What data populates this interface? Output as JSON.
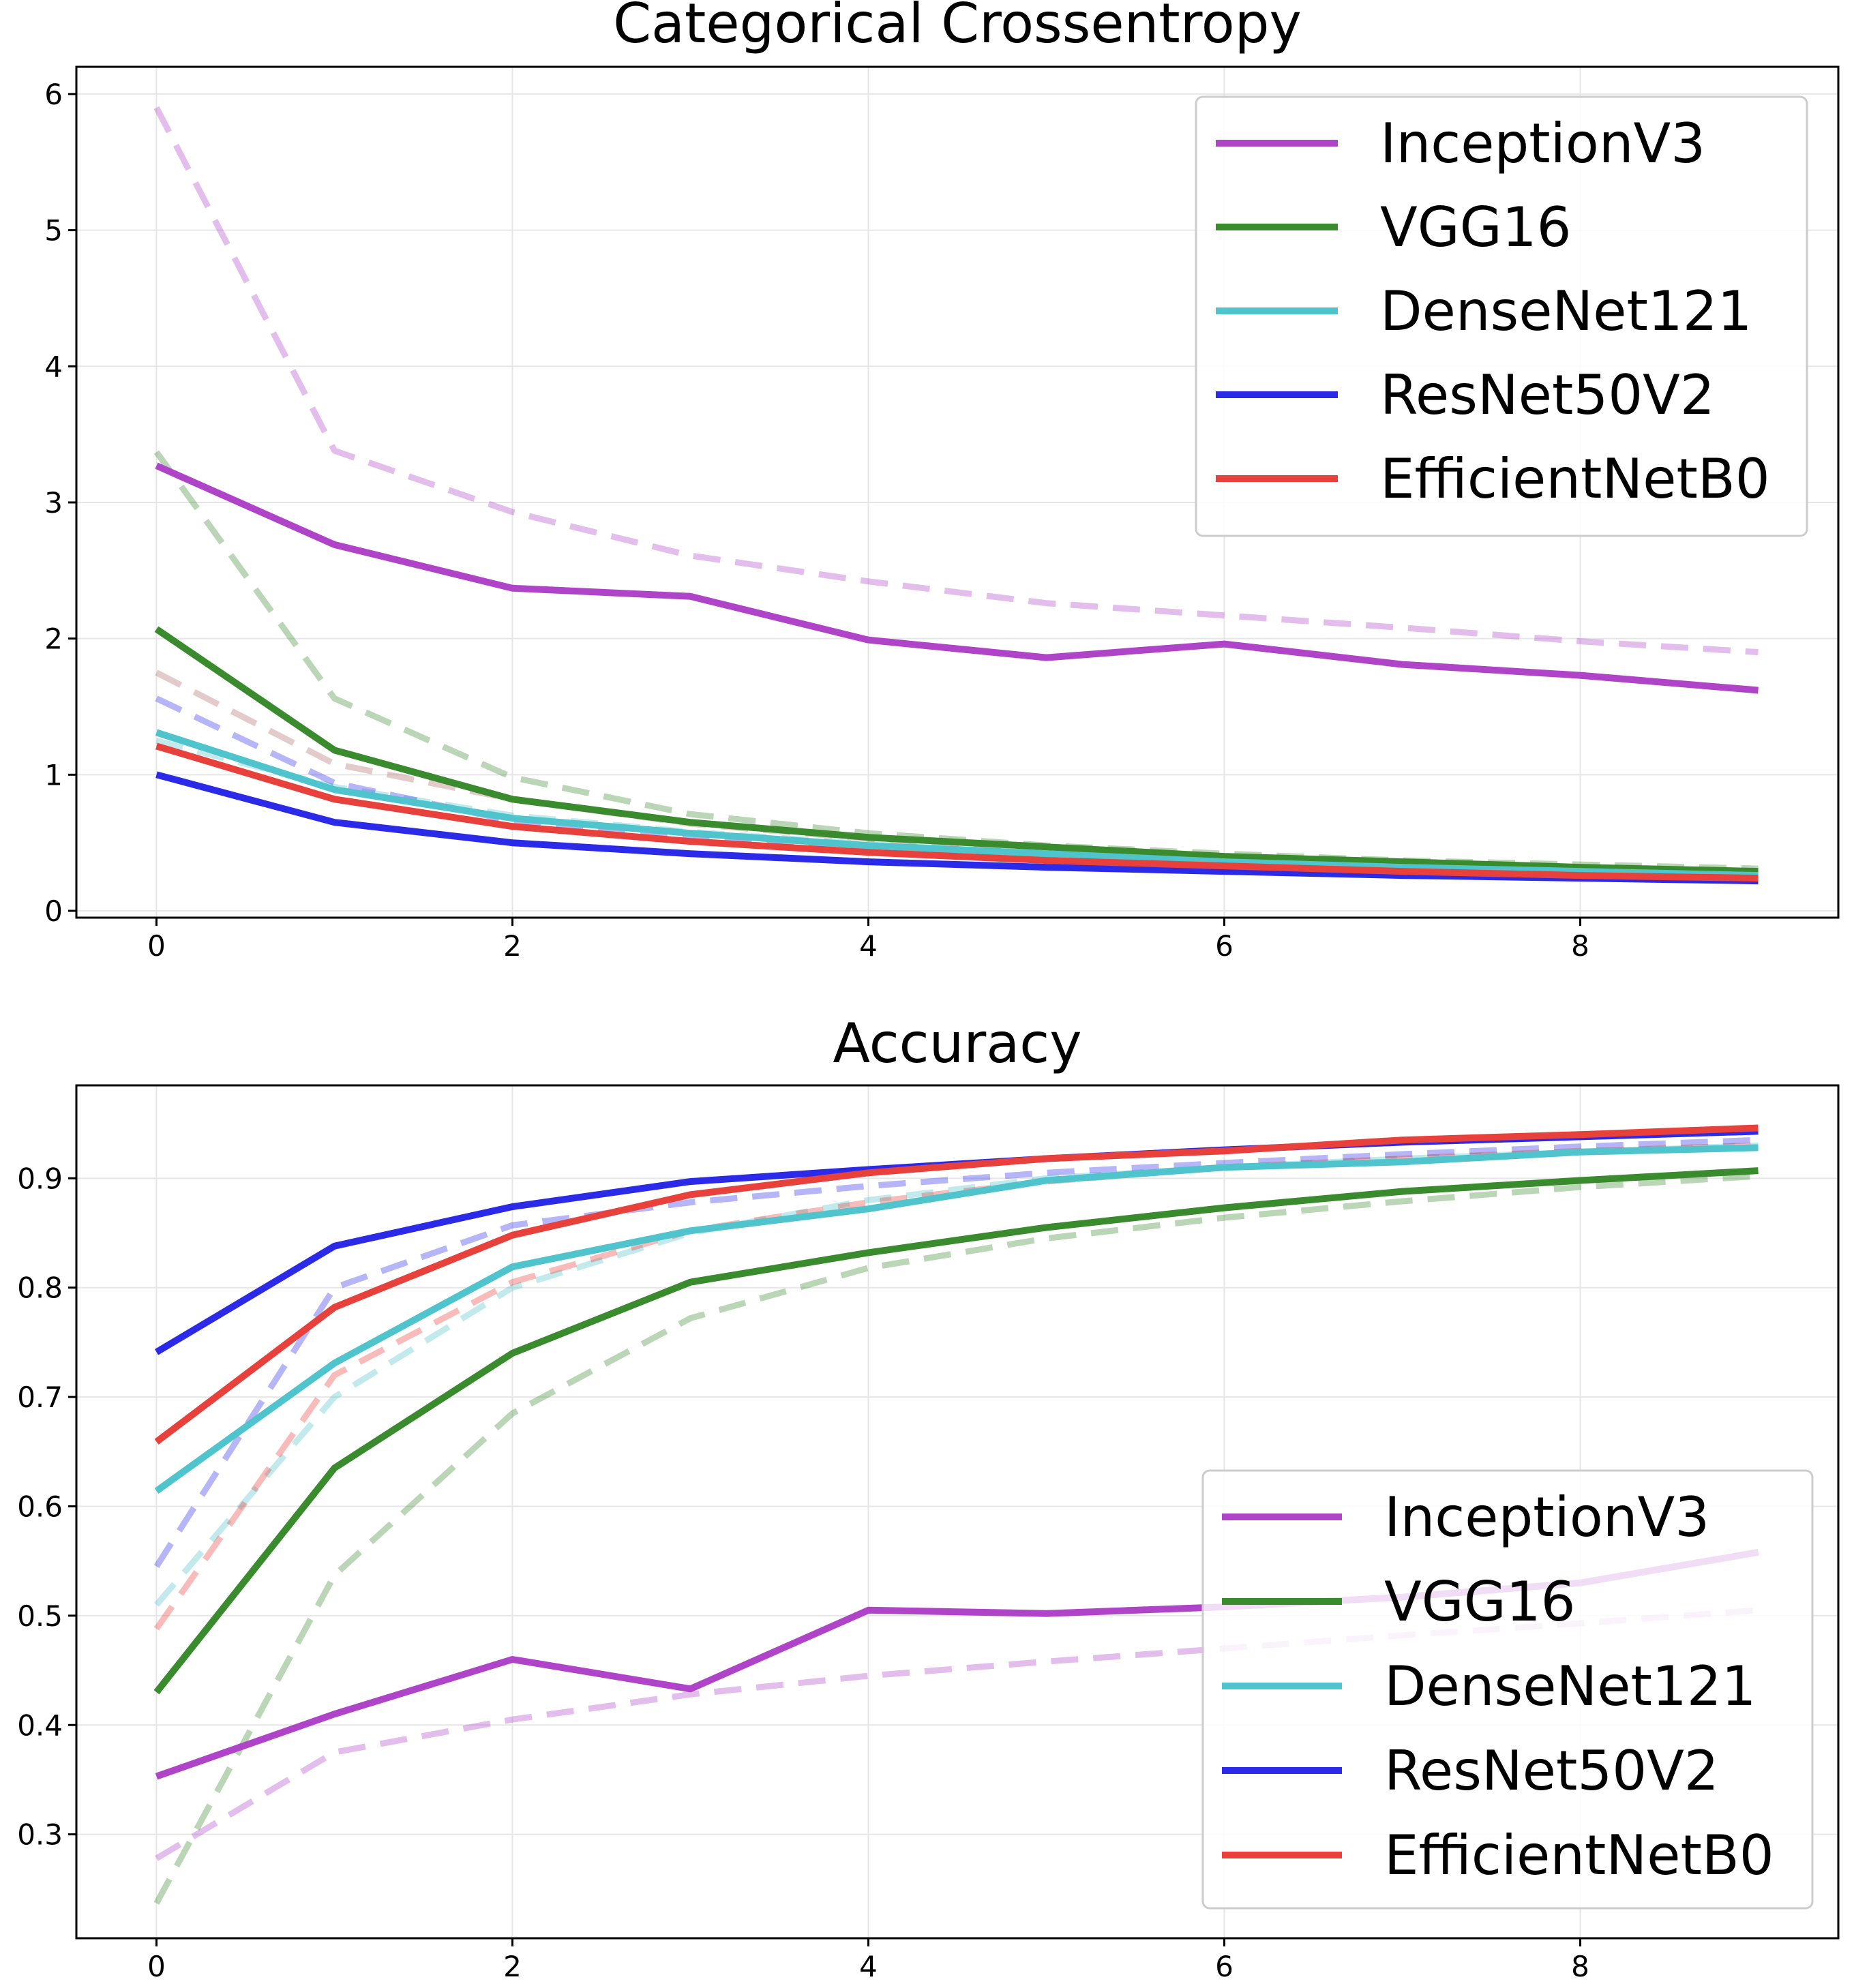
{
  "chart_data": [
    {
      "type": "line",
      "title": "Categorical Crossentropy",
      "xlabel": "",
      "ylabel": "",
      "x": [
        0,
        1,
        2,
        3,
        4,
        5,
        6,
        7,
        8,
        9
      ],
      "xlim": [
        -0.45,
        9.45
      ],
      "ylim": [
        -0.05,
        6.2
      ],
      "xticks": [
        0,
        2,
        4,
        6,
        8
      ],
      "yticks": [
        0,
        1,
        2,
        3,
        4,
        5,
        6
      ],
      "grid": true,
      "legend": {
        "placement": "top-right",
        "entries": [
          "InceptionV3",
          "VGG16",
          "DenseNet121",
          "ResNet50V2",
          "EfficientNetB0"
        ]
      },
      "series": [
        {
          "name": "InceptionV3",
          "color": "#b044c8",
          "style": "solid",
          "values": [
            3.27,
            2.69,
            2.37,
            2.31,
            1.99,
            1.86,
            1.96,
            1.81,
            1.73,
            1.62
          ]
        },
        {
          "name": "InceptionV3",
          "color": "#b044c8",
          "style": "dashed",
          "values": [
            5.9,
            3.38,
            2.93,
            2.61,
            2.42,
            2.26,
            2.17,
            2.08,
            1.98,
            1.9
          ]
        },
        {
          "name": "VGG16",
          "color": "#3a8a2e",
          "style": "solid",
          "values": [
            2.07,
            1.18,
            0.82,
            0.65,
            0.54,
            0.47,
            0.4,
            0.36,
            0.32,
            0.29
          ]
        },
        {
          "name": "VGG16",
          "color": "#3a8a2e",
          "style": "dashed",
          "values": [
            3.37,
            1.56,
            0.98,
            0.71,
            0.57,
            0.48,
            0.42,
            0.37,
            0.34,
            0.31
          ]
        },
        {
          "name": "DenseNet121",
          "color": "#4fc4cc",
          "style": "solid",
          "values": [
            1.31,
            0.89,
            0.68,
            0.57,
            0.48,
            0.42,
            0.36,
            0.32,
            0.29,
            0.26
          ]
        },
        {
          "name": "DenseNet121",
          "color": "#4fc4cc",
          "style": "dashed",
          "values": [
            1.25,
            0.91,
            0.7,
            0.58,
            0.49,
            0.42,
            0.37,
            0.33,
            0.3,
            0.27
          ]
        },
        {
          "name": "ResNet50V2",
          "color": "#2a2ae8",
          "style": "solid",
          "values": [
            1.0,
            0.65,
            0.5,
            0.42,
            0.36,
            0.32,
            0.29,
            0.26,
            0.24,
            0.22
          ]
        },
        {
          "name": "ResNet50V2",
          "color": "#2a2ae8",
          "style": "dashed",
          "values": [
            1.56,
            0.94,
            0.66,
            0.53,
            0.44,
            0.38,
            0.34,
            0.3,
            0.27,
            0.25
          ]
        },
        {
          "name": "EfficientNetB0",
          "color": "#e8403a",
          "style": "solid",
          "values": [
            1.21,
            0.82,
            0.62,
            0.51,
            0.43,
            0.37,
            0.33,
            0.29,
            0.26,
            0.24
          ]
        },
        {
          "name": "EfficientNetB0",
          "color": "#b06a6a",
          "style": "dashed",
          "values": [
            1.75,
            1.08,
            0.82,
            0.64,
            0.53,
            0.45,
            0.39,
            0.34,
            0.31,
            0.28
          ]
        }
      ]
    },
    {
      "type": "line",
      "title": "Accuracy",
      "xlabel": "",
      "ylabel": "",
      "x": [
        0,
        1,
        2,
        3,
        4,
        5,
        6,
        7,
        8,
        9
      ],
      "xlim": [
        -0.45,
        9.45
      ],
      "ylim": [
        0.205,
        0.985
      ],
      "xticks": [
        0,
        2,
        4,
        6,
        8
      ],
      "yticks": [
        0.3,
        0.4,
        0.5,
        0.6,
        0.7,
        0.8,
        0.9
      ],
      "ytick_labels": [
        "0.3",
        "0.4",
        "0.5",
        "0.6",
        "0.7",
        "0.8",
        "0.9"
      ],
      "grid": true,
      "legend": {
        "placement": "lower-right",
        "entries": [
          "InceptionV3",
          "VGG16",
          "DenseNet121",
          "ResNet50V2",
          "EfficientNetB0"
        ]
      },
      "series": [
        {
          "name": "InceptionV3",
          "color": "#b044c8",
          "style": "solid",
          "values": [
            0.353,
            0.41,
            0.46,
            0.433,
            0.505,
            0.502,
            0.508,
            0.517,
            0.53,
            0.558
          ]
        },
        {
          "name": "InceptionV3",
          "color": "#b044c8",
          "style": "dashed",
          "values": [
            0.278,
            0.375,
            0.405,
            0.428,
            0.445,
            0.458,
            0.47,
            0.482,
            0.493,
            0.505
          ]
        },
        {
          "name": "VGG16",
          "color": "#3a8a2e",
          "style": "solid",
          "values": [
            0.43,
            0.635,
            0.74,
            0.805,
            0.832,
            0.855,
            0.873,
            0.888,
            0.898,
            0.907
          ]
        },
        {
          "name": "VGG16",
          "color": "#3a8a2e",
          "style": "dashed",
          "values": [
            0.237,
            0.537,
            0.685,
            0.772,
            0.818,
            0.845,
            0.864,
            0.879,
            0.892,
            0.902
          ]
        },
        {
          "name": "DenseNet121",
          "color": "#4fc4cc",
          "style": "solid",
          "values": [
            0.614,
            0.731,
            0.819,
            0.852,
            0.872,
            0.898,
            0.91,
            0.915,
            0.924,
            0.928
          ]
        },
        {
          "name": "DenseNet121",
          "color": "#4fc4cc",
          "style": "dashed",
          "values": [
            0.51,
            0.7,
            0.8,
            0.85,
            0.88,
            0.9,
            0.91,
            0.918,
            0.924,
            0.93
          ]
        },
        {
          "name": "ResNet50V2",
          "color": "#2a2ae8",
          "style": "solid",
          "values": [
            0.741,
            0.838,
            0.874,
            0.897,
            0.908,
            0.918,
            0.926,
            0.933,
            0.938,
            0.943
          ]
        },
        {
          "name": "ResNet50V2",
          "color": "#2a2ae8",
          "style": "dashed",
          "values": [
            0.545,
            0.8,
            0.857,
            0.878,
            0.893,
            0.905,
            0.914,
            0.922,
            0.929,
            0.935
          ]
        },
        {
          "name": "EfficientNetB0",
          "color": "#e8403a",
          "style": "solid",
          "values": [
            0.659,
            0.782,
            0.848,
            0.885,
            0.905,
            0.918,
            0.925,
            0.935,
            0.94,
            0.946
          ]
        },
        {
          "name": "EfficientNetB0",
          "color": "#e8403a",
          "style": "dashed",
          "values": [
            0.488,
            0.72,
            0.805,
            0.852,
            0.878,
            0.897,
            0.91,
            0.918,
            0.925,
            0.93
          ]
        }
      ]
    }
  ]
}
